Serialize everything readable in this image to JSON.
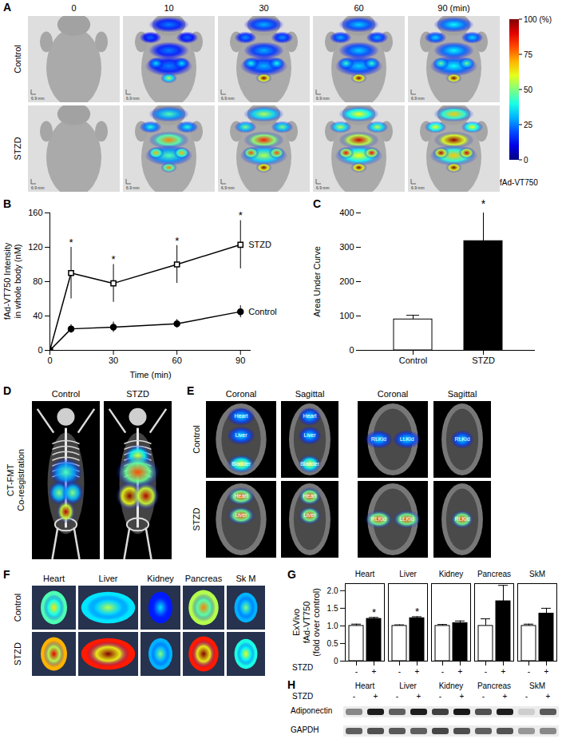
{
  "panel_labels": [
    "A",
    "B",
    "C",
    "D",
    "E",
    "F",
    "G",
    "H"
  ],
  "panel_a": {
    "time_points": [
      "0",
      "10",
      "30",
      "60",
      "90 (min)"
    ],
    "rows": [
      "Control",
      "STZD"
    ],
    "scale_bar": "6.9 mm",
    "colorbar": {
      "label": "fAd-VT750",
      "range": [
        0,
        100
      ],
      "ticks": [
        {
          "value": 100,
          "label": "100 (%)"
        },
        75,
        50,
        25,
        0
      ]
    }
  },
  "chart_data": [
    {
      "type": "line",
      "x_label": "Time (min)",
      "y_label": [
        "fAd-VT750 Intensity",
        "in whole body (nM)"
      ],
      "x": [
        0,
        10,
        30,
        60,
        90
      ],
      "series": [
        {
          "name": "STZD",
          "color": "#000000",
          "marker": "square",
          "values": [
            0,
            90,
            78,
            100,
            123
          ],
          "errors": [
            0,
            30,
            22,
            22,
            28
          ]
        },
        {
          "name": "Control",
          "color": "#000000",
          "marker": "circle",
          "values": [
            0,
            25,
            27,
            31,
            45
          ],
          "errors": [
            0,
            5,
            6,
            5,
            7
          ]
        }
      ],
      "xlim": [
        0,
        95
      ],
      "xticks": [
        0,
        30,
        60,
        90
      ],
      "ylim": [
        0,
        160
      ],
      "yticks": [
        0,
        40,
        80,
        120,
        160
      ],
      "significance_mark": "*",
      "significant_x": [
        10,
        30,
        60,
        90
      ]
    },
    {
      "type": "bar",
      "categories": [
        "Control",
        "STZD"
      ],
      "values": [
        90,
        318
      ],
      "errors": [
        12,
        88
      ],
      "colors": [
        "#ffffff",
        "#000000"
      ],
      "y_label": "Area Under Curve",
      "ylim": [
        0,
        400
      ],
      "yticks": [
        0,
        100,
        200,
        300,
        400
      ],
      "significance_mark": "*",
      "significant": [
        "STZD"
      ]
    },
    {
      "type": "bar",
      "categories": [
        "Heart",
        "Liver",
        "Kidney",
        "Pancreas",
        "SkM"
      ],
      "x_label": "STZD",
      "series": [
        {
          "name": "-",
          "color": "#ffffff",
          "values": [
            1,
            1,
            1,
            1,
            1
          ],
          "errors": [
            0.05,
            0.03,
            0.04,
            0.2,
            0.05
          ]
        },
        {
          "name": "+",
          "color": "#000000",
          "values": [
            1.2,
            1.22,
            1.08,
            1.7,
            1.35
          ],
          "errors": [
            0.04,
            0.04,
            0.06,
            0.45,
            0.15
          ]
        }
      ],
      "y_label": [
        "ExVivo",
        "fAd-VT750",
        "(fold over control)"
      ],
      "ylim": [
        0,
        2.2
      ],
      "yticks": [
        0,
        0.5,
        {
          "value": 1,
          "label": "1.0"
        },
        1.5,
        {
          "value": 2,
          "label": "2.0"
        }
      ],
      "significance_mark": "*",
      "significant": [
        "Heart",
        "Liver"
      ]
    }
  ],
  "panel_d": {
    "columns": [
      "Control",
      "STZD"
    ],
    "row_label": [
      "CT-FMT",
      "Co-resgistration"
    ]
  },
  "panel_e": {
    "columns": [
      "Coronal",
      "Sagittal",
      "Coronal",
      "Sagittal"
    ],
    "rows": [
      "Control",
      "STZD"
    ],
    "organ_labels": [
      "Heart",
      "Liver",
      "Bladder",
      "Rt.Kid",
      "Lt.Kid"
    ]
  },
  "panel_f": {
    "columns": [
      "Heart",
      "Liver",
      "Kidney",
      "Pancreas",
      "Sk M"
    ],
    "rows": [
      "Control",
      "STZD"
    ]
  },
  "panel_h": {
    "columns": [
      "Heart",
      "Liver",
      "Kidney",
      "Pancreas",
      "SkM"
    ],
    "condition": "STZD",
    "signs": [
      "-",
      "+"
    ],
    "bands": [
      "Adiponectin",
      "GAPDH"
    ]
  }
}
